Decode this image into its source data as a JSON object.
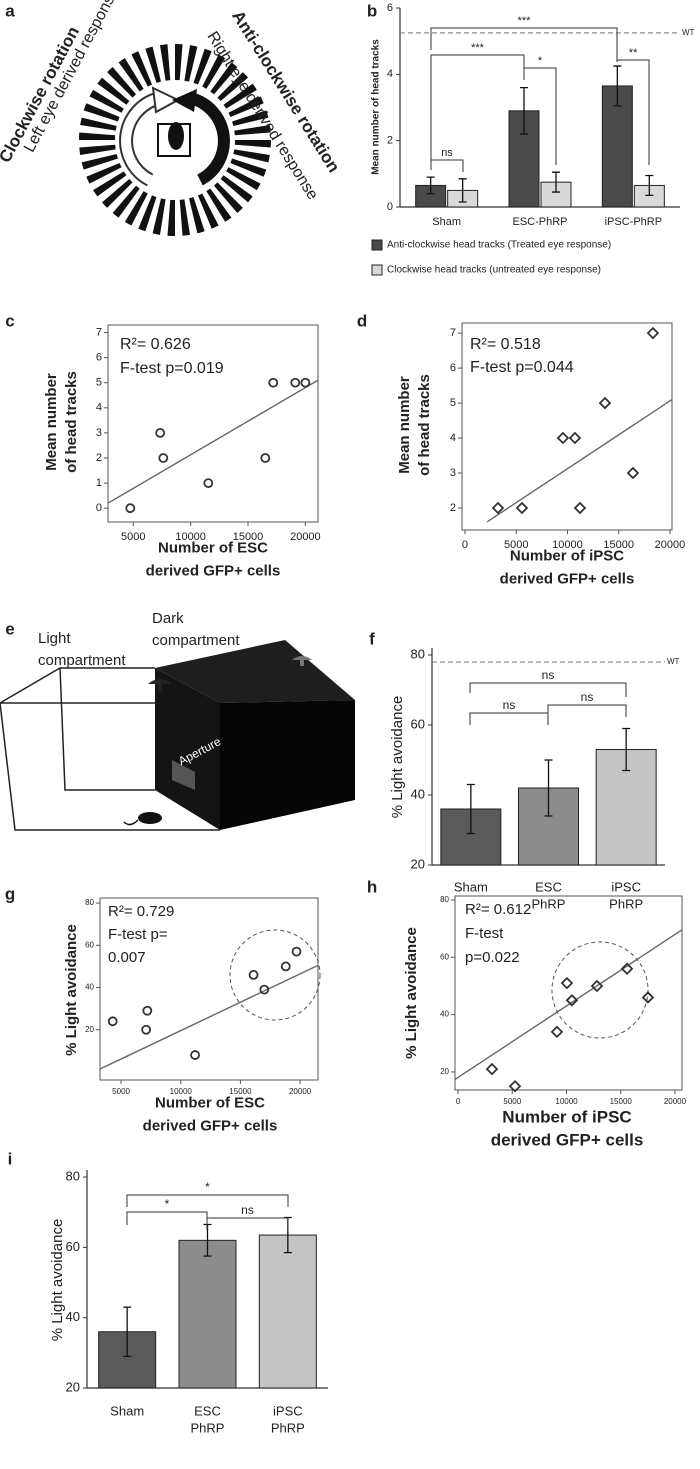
{
  "panel_labels": [
    "a",
    "b",
    "c",
    "d",
    "e",
    "f",
    "g",
    "h",
    "i"
  ],
  "figure_a": {
    "left_title": "Clockwise rotation",
    "left_subtitle": "Left eye derived response",
    "right_title": "Anti-clockwise rotation",
    "right_subtitle": "Right eye derived response"
  },
  "figure_e": {
    "light_label": "Light\ncompartment",
    "dark_label": "Dark\ncompartment",
    "aperture_label": "Aperture"
  },
  "chart_data": [
    {
      "type": "bar",
      "ylabel": "Mean number of head tracks",
      "categories": [
        "Sham",
        "ESC-PhRP",
        "iPSC-PhRP"
      ],
      "series": [
        {
          "name": "Anti-clockwise head tracks (Treated eye response)",
          "color": "#4a4a4a",
          "values": [
            0.65,
            2.9,
            3.65
          ],
          "errors": [
            0.25,
            0.7,
            0.6
          ]
        },
        {
          "name": "Clockwise head tracks (untreated eye response)",
          "color": "#d9d9d9",
          "values": [
            0.5,
            0.75,
            0.65
          ],
          "errors": [
            0.35,
            0.3,
            0.3
          ]
        }
      ],
      "ylim": [
        0,
        6
      ],
      "yticks": [
        0,
        2,
        4,
        6
      ],
      "reference_line": {
        "value": 5.25,
        "label": "WT"
      },
      "significance": [
        "ns",
        "***",
        "***",
        "*",
        "**"
      ],
      "legend": "bottom"
    },
    {
      "type": "scatter",
      "ylabel": "Mean number\nof head tracks",
      "xlabel": "Number of ESC\nderived GFP+ cells",
      "x": [
        4740,
        7350,
        7620,
        11540,
        16510,
        17200,
        19120,
        20000
      ],
      "values": [
        0,
        3,
        2,
        1,
        2,
        5,
        5,
        5
      ],
      "fit_line": {
        "x": [
          2800,
          21100
        ],
        "y": [
          0.2,
          5.1
        ]
      },
      "xlim": [
        2800,
        21100
      ],
      "xticks": [
        5000,
        10000,
        15000,
        20000
      ],
      "ylim": [
        -0.55,
        7.3
      ],
      "yticks": [
        0,
        1,
        2,
        3,
        4,
        5,
        6,
        7
      ],
      "annotations": [
        "R²= 0.626",
        "F-test p=0.019"
      ],
      "marker": "circle"
    },
    {
      "type": "scatter",
      "ylabel": "Mean number\nof head tracks",
      "xlabel": "Number of iPSC\nderived GFP+ cells",
      "x": [
        3220,
        5560,
        9560,
        10730,
        11220,
        13660,
        16390,
        18340
      ],
      "values": [
        2,
        2,
        4,
        4,
        2,
        5,
        3,
        7
      ],
      "fit_line": {
        "x": [
          2150,
          20200
        ],
        "y": [
          1.6,
          5.1
        ]
      },
      "xlim": [
        -290,
        20200
      ],
      "xticks": [
        0,
        5000,
        10000,
        15000,
        20000
      ],
      "ylim": [
        1.37,
        7.29
      ],
      "yticks": [
        2,
        3,
        4,
        5,
        6,
        7
      ],
      "annotations": [
        "R²= 0.518",
        "F-test p=0.044"
      ],
      "marker": "diamond"
    },
    {
      "type": "bar",
      "ylabel": "% Light avoidance",
      "categories": [
        "Sham",
        "ESC\nPhRP",
        "iPSC\nPhRP"
      ],
      "values": [
        36,
        42,
        53
      ],
      "errors": [
        7,
        8,
        6
      ],
      "colors": [
        "#5a5a5a",
        "#8c8c8c",
        "#c4c4c4"
      ],
      "ylim": [
        20,
        82
      ],
      "yticks": [
        20,
        40,
        60,
        80
      ],
      "reference_line": {
        "value": 78,
        "label": "WT"
      },
      "significance": [
        "ns",
        "ns",
        "ns"
      ]
    },
    {
      "type": "scatter",
      "ylabel": "% Light avoidance",
      "xlabel": "Number of ESC\nderived GFP+ cells",
      "x": [
        4300,
        7100,
        7200,
        11200,
        16100,
        17000,
        18800,
        19700
      ],
      "values": [
        24,
        20,
        29,
        8,
        46,
        39,
        50,
        57
      ],
      "fit_line": {
        "x": [
          3235,
          21500
        ],
        "y": [
          1.4,
          50.5
        ]
      },
      "xlim": [
        3235,
        21500
      ],
      "xticks": [
        5000,
        10000,
        15000,
        20000
      ],
      "ylim": [
        -3.8,
        82.4
      ],
      "yticks": [
        20,
        40,
        60,
        80
      ],
      "annotations": [
        "R²= 0.729",
        "F-test p=",
        "0.007"
      ],
      "marker": "circle"
    },
    {
      "type": "scatter",
      "ylabel": "% Light avoidance",
      "xlabel": "Number of iPSC\nderived GFP+ cells",
      "x": [
        3130,
        5250,
        9120,
        10040,
        10500,
        12810,
        15580,
        17510
      ],
      "values": [
        21,
        15,
        34,
        51,
        45,
        50,
        56,
        46
      ],
      "fit_line": {
        "x": [
          -280,
          20650
        ],
        "y": [
          17.4,
          69.6
        ]
      },
      "xlim": [
        -280,
        20650
      ],
      "xticks": [
        0,
        5000,
        10000,
        15000,
        20000
      ],
      "ylim": [
        13.7,
        81.4
      ],
      "yticks": [
        20,
        40,
        60,
        80
      ],
      "annotations": [
        "R²= 0.612",
        "F-test",
        "p=0.022"
      ],
      "marker": "diamond"
    },
    {
      "type": "bar",
      "ylabel": "% Light avoidance",
      "categories": [
        "Sham",
        "ESC\nPhRP",
        "iPSC\nPhRP"
      ],
      "values": [
        36,
        62,
        63.5
      ],
      "errors": [
        7,
        4.5,
        5
      ],
      "colors": [
        "#5a5a5a",
        "#8c8c8c",
        "#c4c4c4"
      ],
      "ylim": [
        20,
        82
      ],
      "yticks": [
        20,
        40,
        60,
        80
      ],
      "significance": [
        "*",
        "*",
        "ns"
      ]
    }
  ]
}
